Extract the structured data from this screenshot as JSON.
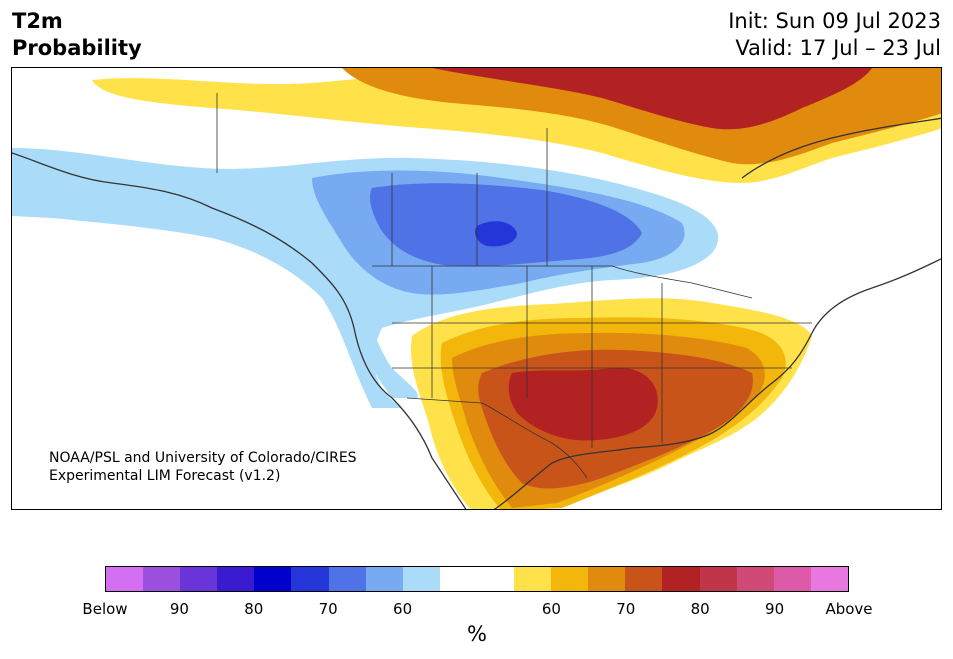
{
  "header": {
    "title_line1": "T2m",
    "title_line2": "Probability",
    "init_text": "Init: Sun 09 Jul 2023",
    "valid_text": "Valid: 17 Jul – 23 Jul"
  },
  "credit": {
    "line1": "NOAA/PSL and University of Colorado/CIRES",
    "line2": "Experimental LIM Forecast (v1.2)"
  },
  "colorbar": {
    "colors": [
      "#d36ff0",
      "#9b50e0",
      "#6a35d8",
      "#3a1bd0",
      "#0000cd",
      "#2536d8",
      "#4f72e6",
      "#77aaf0",
      "#aadcfa",
      "#ffffff",
      "#ffffff",
      "#ffe24a",
      "#f2b70a",
      "#e08a0e",
      "#c9541a",
      "#b22222",
      "#c0354a",
      "#d04a78",
      "#dc5aa8",
      "#e878e0"
    ],
    "labels": [
      "Below",
      "90",
      "80",
      "70",
      "60",
      "60",
      "70",
      "80",
      "90",
      "Above"
    ],
    "unit": "%"
  },
  "map_colors": {
    "land": "#ffffff",
    "ocean": "#ffffff",
    "coast": "#333333",
    "border": "#333333"
  }
}
